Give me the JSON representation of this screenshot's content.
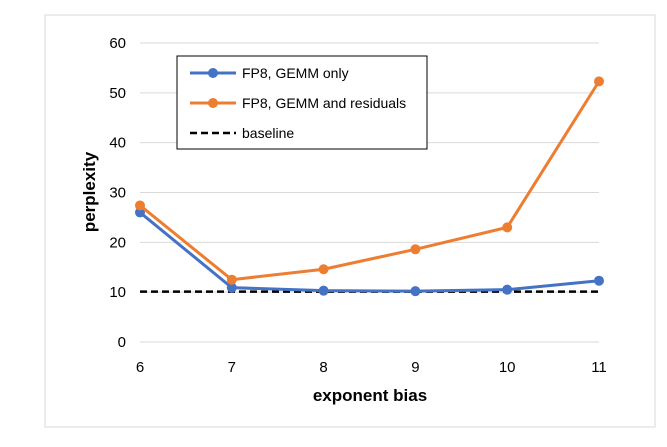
{
  "chart_data": {
    "type": "line",
    "title": "",
    "xlabel": "exponent bias",
    "ylabel": "perplexity",
    "x": [
      6,
      7,
      8,
      9,
      10,
      11
    ],
    "xlim": [
      6,
      11
    ],
    "ylim": [
      0,
      60
    ],
    "yticks": [
      0,
      10,
      20,
      30,
      40,
      50,
      60
    ],
    "grid": "horizontal",
    "legend_position": "top-left",
    "series": [
      {
        "name": "FP8, GEMM only",
        "color": "#4472C4",
        "marker": "circle",
        "values": [
          26,
          10.9,
          10.3,
          10.2,
          10.5,
          12.3
        ]
      },
      {
        "name": "FP8, GEMM and residuals",
        "color": "#ED7D31",
        "marker": "circle",
        "values": [
          27.4,
          12.5,
          14.6,
          18.6,
          23,
          52.3
        ]
      }
    ],
    "reference_lines": [
      {
        "name": "baseline",
        "value": 10.1,
        "style": "dashed",
        "color": "#000000"
      }
    ]
  }
}
